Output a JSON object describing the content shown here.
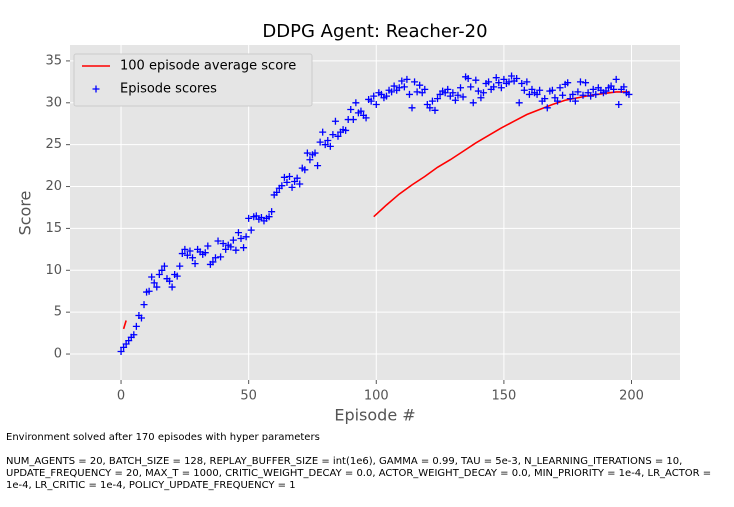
{
  "chart_data": {
    "type": "scatter",
    "title": "DDPG Agent: Reacher-20",
    "x_label": "Episode #",
    "y_label": "Score",
    "xlim": [
      -20,
      219
    ],
    "ylim": [
      -3.1,
      36.9
    ],
    "xticks": [
      0,
      50,
      100,
      150,
      200
    ],
    "yticks": [
      0,
      5,
      10,
      15,
      20,
      25,
      30,
      35
    ],
    "grid": true,
    "legend": "upper left",
    "series": [
      {
        "name": "100 episode average score",
        "type": "line",
        "color": "#ff0000",
        "x": [
          1,
          2,
          50,
          99,
          104,
          109,
          114,
          119,
          124,
          129,
          134,
          139,
          144,
          149,
          154,
          159,
          164,
          169,
          174,
          179,
          184,
          189,
          194,
          199
        ],
        "values": [
          3.0,
          4.0,
          null,
          16.4,
          17.8,
          19.1,
          20.2,
          21.2,
          22.3,
          23.2,
          24.2,
          25.2,
          26.1,
          27.0,
          27.8,
          28.6,
          29.2,
          29.8,
          30.3,
          30.6,
          30.9,
          31.1,
          31.3,
          31.3
        ]
      },
      {
        "name": "Episode scores",
        "type": "scatter",
        "color": "#0000ff",
        "x": [
          0,
          1,
          2,
          3,
          4,
          5,
          6,
          7,
          8,
          9,
          10,
          11,
          12,
          13,
          14,
          15,
          16,
          17,
          18,
          19,
          20,
          21,
          22,
          23,
          24,
          25,
          26,
          27,
          28,
          29,
          30,
          31,
          32,
          33,
          34,
          35,
          36,
          37,
          38,
          39,
          40,
          41,
          42,
          43,
          44,
          45,
          46,
          47,
          48,
          49,
          50,
          51,
          52,
          53,
          54,
          55,
          56,
          57,
          58,
          59,
          60,
          61,
          62,
          63,
          64,
          65,
          66,
          67,
          68,
          69,
          70,
          71,
          72,
          73,
          74,
          75,
          76,
          77,
          78,
          79,
          80,
          81,
          82,
          83,
          84,
          85,
          86,
          87,
          88,
          89,
          90,
          91,
          92,
          93,
          94,
          95,
          96,
          97,
          98,
          99,
          100,
          101,
          102,
          103,
          104,
          105,
          106,
          107,
          108,
          109,
          110,
          111,
          112,
          113,
          114,
          115,
          116,
          117,
          118,
          119,
          120,
          121,
          122,
          123,
          124,
          125,
          126,
          127,
          128,
          129,
          130,
          131,
          132,
          133,
          134,
          135,
          136,
          137,
          138,
          139,
          140,
          141,
          142,
          143,
          144,
          145,
          146,
          147,
          148,
          149,
          150,
          151,
          152,
          153,
          154,
          155,
          156,
          157,
          158,
          159,
          160,
          161,
          162,
          163,
          164,
          165,
          166,
          167,
          168,
          169,
          170,
          171,
          172,
          173,
          174,
          175,
          176,
          177,
          178,
          179,
          180,
          181,
          182,
          183,
          184,
          185,
          186,
          187,
          188,
          189,
          190,
          191,
          192,
          193,
          194,
          195,
          196,
          197,
          198,
          199
        ],
        "values": [
          0.3,
          0.8,
          1.2,
          1.6,
          2.0,
          2.3,
          3.3,
          4.6,
          4.3,
          5.9,
          7.4,
          7.5,
          9.2,
          8.5,
          8.0,
          9.5,
          10.0,
          10.5,
          9.0,
          8.7,
          8.0,
          9.5,
          9.3,
          10.5,
          12.0,
          12.5,
          11.8,
          12.3,
          11.5,
          10.8,
          12.5,
          12.2,
          11.9,
          12.1,
          12.9,
          10.7,
          11.0,
          11.5,
          13.5,
          11.6,
          13.2,
          12.5,
          13.0,
          12.8,
          13.6,
          12.4,
          14.5,
          13.8,
          12.7,
          14.0,
          16.2,
          14.8,
          16.4,
          16.5,
          16.1,
          16.3,
          15.9,
          16.2,
          16.4,
          17.0,
          19.0,
          19.3,
          19.8,
          20.1,
          21.1,
          20.5,
          21.2,
          19.9,
          20.6,
          21.0,
          20.3,
          22.2,
          22.0,
          24.0,
          23.2,
          23.8,
          24.0,
          22.5,
          25.3,
          26.5,
          25.0,
          25.5,
          24.8,
          26.2,
          27.8,
          26.0,
          26.5,
          26.8,
          26.7,
          28.0,
          29.2,
          28.0,
          30.0,
          28.8,
          29.0,
          28.5,
          28.2,
          30.4,
          30.2,
          30.8,
          29.8,
          31.2,
          31.0,
          30.6,
          30.8,
          31.5,
          31.3,
          32.0,
          31.5,
          31.8,
          32.6,
          31.9,
          32.8,
          31.0,
          29.4,
          32.5,
          31.3,
          32.1,
          31.2,
          31.6,
          29.8,
          29.4,
          30.2,
          29.1,
          30.5,
          31.0,
          31.4,
          31.2,
          31.6,
          30.8,
          31.2,
          30.3,
          30.9,
          31.8,
          30.7,
          33.1,
          32.9,
          31.9,
          30.0,
          32.7,
          31.4,
          30.6,
          31.2,
          32.3,
          32.5,
          31.6,
          31.9,
          33.0,
          32.4,
          31.8,
          32.8,
          32.3,
          32.5,
          33.2,
          32.6,
          32.9,
          30.0,
          32.3,
          31.5,
          32.5,
          31.0,
          31.6,
          31.2,
          31.0,
          31.5,
          30.2,
          30.5,
          29.4,
          31.4,
          31.5,
          30.6,
          30.2,
          31.8,
          30.9,
          32.2,
          32.4,
          30.5,
          31.0,
          30.2,
          31.3,
          32.5,
          30.9,
          32.4,
          31.2,
          30.8,
          31.6,
          31.0,
          31.8,
          31.5,
          31.2,
          31.4,
          31.8,
          32.0,
          31.6,
          32.8,
          29.8,
          31.6,
          31.9,
          31.2,
          31.0
        ]
      }
    ],
    "annotations": [
      "Environment solved after 170 episodes with hyper parameters",
      "NUM_AGENTS = 20, BATCH_SIZE = 128, REPLAY_BUFFER_SIZE = int(1e6), GAMMA = 0.99, TAU = 5e-3, N_LEARNING_ITERATIONS = 10, UPDATE_FREQUENCY = 20, MAX_T = 1000, CRITIC_WEIGHT_DECAY = 0.0, ACTOR_WEIGHT_DECAY = 0.0, MIN_PRIORITY = 1e-4, LR_ACTOR = 1e-4, LR_CRITIC = 1e-4, POLICY_UPDATE_FREQUENCY = 1"
    ]
  }
}
